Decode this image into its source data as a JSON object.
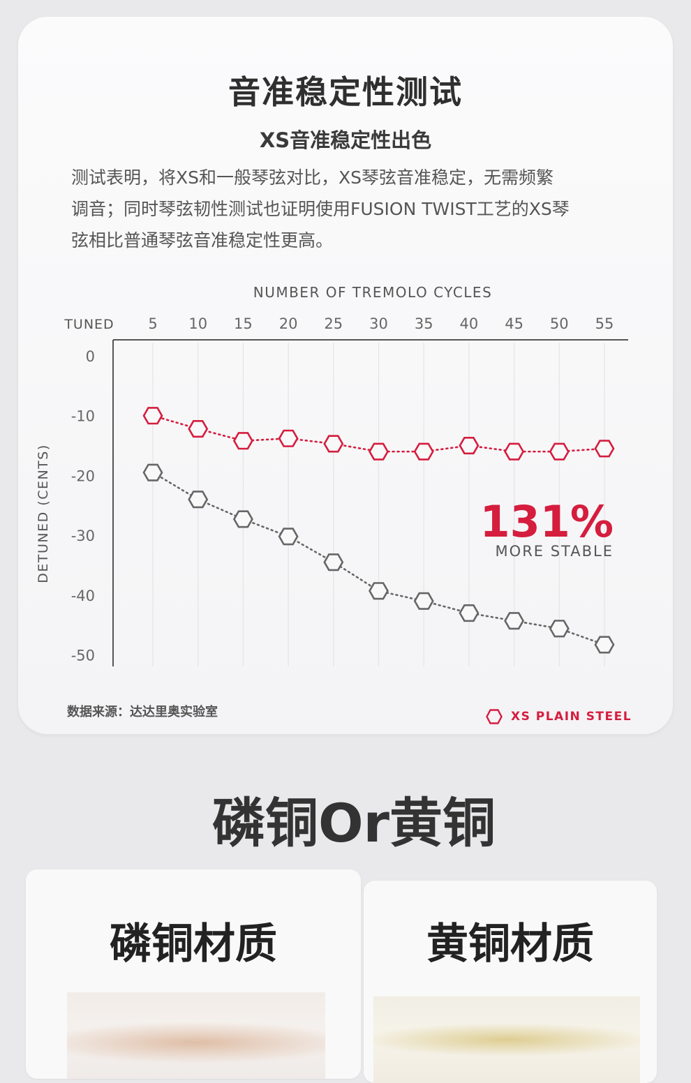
{
  "header": {
    "title": "音准稳定性测试",
    "subtitle": "XS音准稳定性出色",
    "paragraph_lines": [
      "测试表明，将XS和一般琴弦对比，XS琴弦音准稳定，无需频繁",
      "调音；同时琴弦韧性测试也证明使用FUSION TWIST工艺的XS琴",
      "弦相比普通琴弦音准稳定性更高。"
    ]
  },
  "chart_data": {
    "type": "line",
    "xlabel": "NUMBER OF TREMOLO CYCLES",
    "ylabel": "DETUNED (CENTS)",
    "x_start_label": "TUNED",
    "x": [
      5,
      10,
      15,
      20,
      25,
      30,
      35,
      40,
      45,
      50,
      55
    ],
    "x_tick_labels": [
      "5",
      "10",
      "15",
      "20",
      "25",
      "30",
      "35",
      "40",
      "45",
      "50",
      "55"
    ],
    "y_tick_labels": [
      "0",
      "-10",
      "-20",
      "-30",
      "-40",
      "-50"
    ],
    "y_ticks": [
      0,
      -10,
      -20,
      -30,
      -40,
      -50
    ],
    "ylim": [
      -52,
      0
    ],
    "grid": "vertical",
    "series": [
      {
        "name": "XS PLAIN STEEL",
        "color": "#d51d3e",
        "values": [
          -10.0,
          -12.2,
          -14.2,
          -13.8,
          -14.7,
          -16.0,
          -16.0,
          -15.0,
          -16.0,
          -16.0,
          -15.5
        ]
      },
      {
        "color": "#666666",
        "values": [
          -19.5,
          -24.0,
          -27.3,
          -30.2,
          -34.5,
          -39.3,
          -41.0,
          -43.0,
          -44.3,
          -45.6,
          -48.3
        ]
      }
    ],
    "annotation": {
      "value": "131%",
      "label": "MORE STABLE",
      "color": "#d51d3e"
    }
  },
  "footer": {
    "source": "数据来源：达达里奥实验室",
    "legend_label": "XS PLAIN STEEL",
    "legend_icon": "hexagon-outline-icon"
  },
  "section": {
    "title": "磷铜Or黄铜"
  },
  "materials": [
    {
      "title": "磷铜材质",
      "photo": "phosphor-bronze-string-photo"
    },
    {
      "title": "黄铜材质",
      "photo": "brass-string-photo"
    }
  ]
}
